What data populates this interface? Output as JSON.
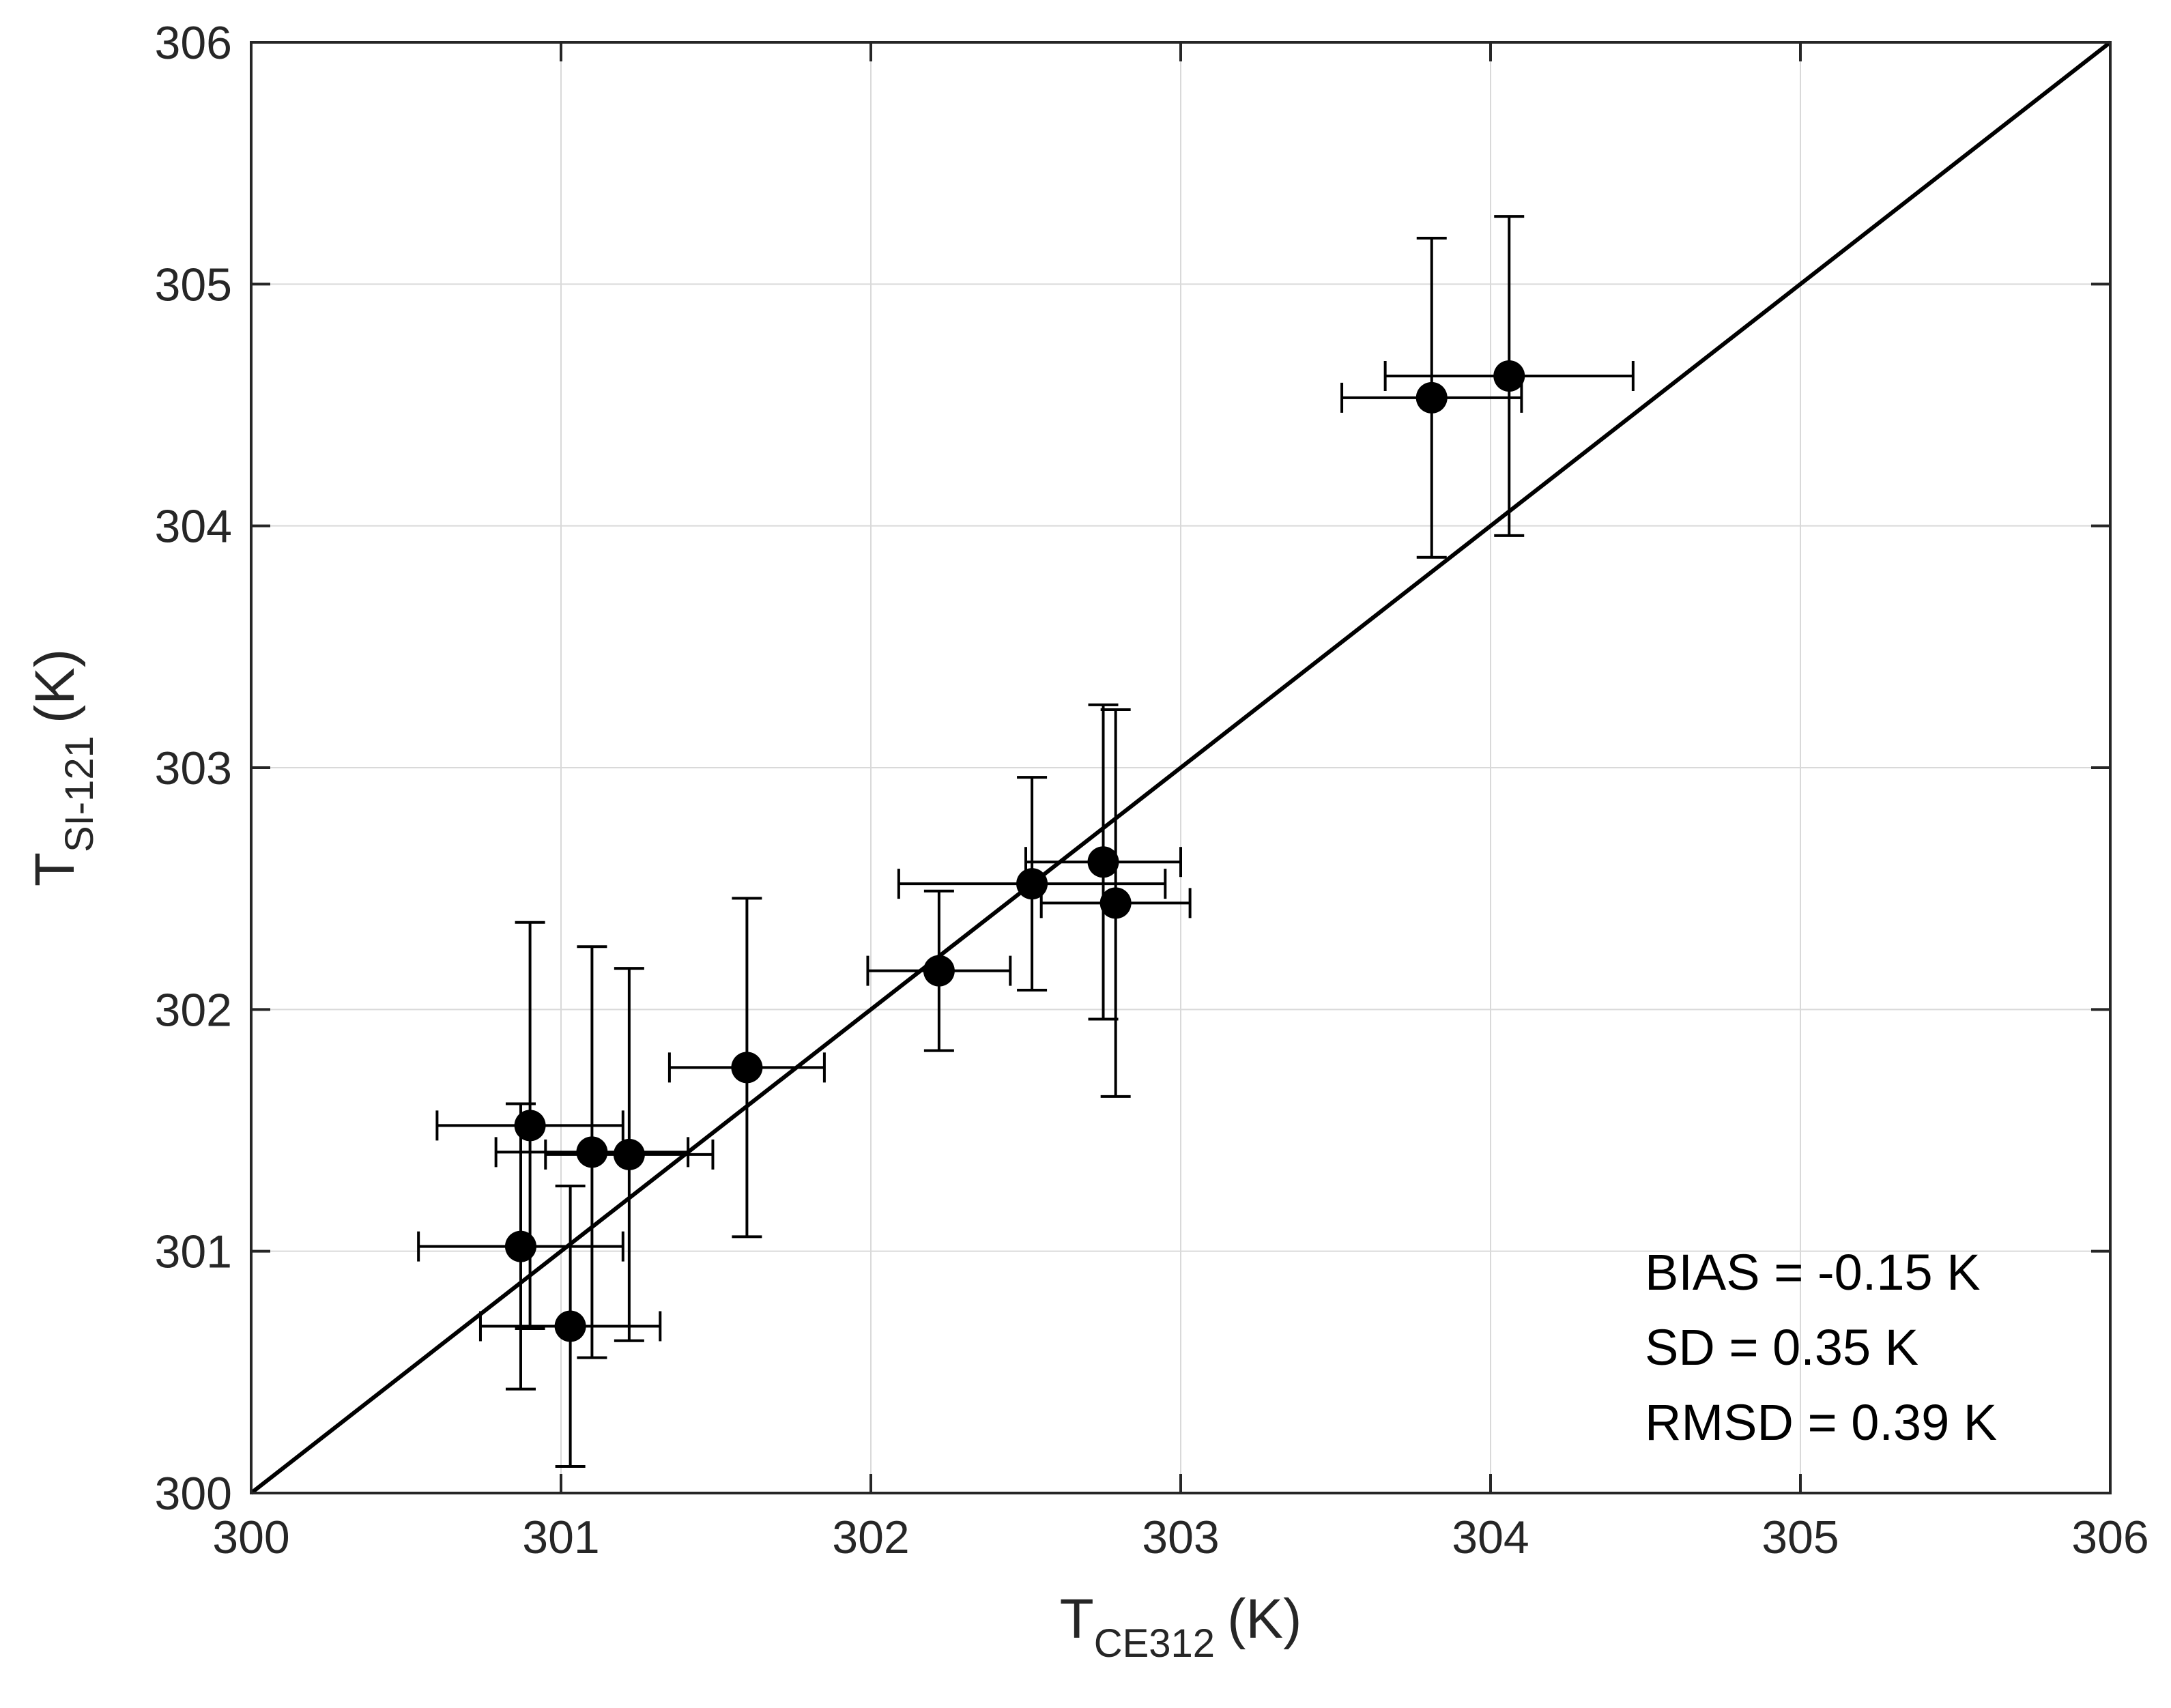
{
  "chart_data": {
    "type": "scatter",
    "title": "",
    "xlabel": {
      "main": "T",
      "sub": "CE312",
      "unit": "(K)"
    },
    "ylabel": {
      "main": "T",
      "sub": "SI-121",
      "unit": "(K)"
    },
    "xlim": [
      300,
      306
    ],
    "ylim": [
      300,
      306
    ],
    "xticks": [
      300,
      301,
      302,
      303,
      304,
      305,
      306
    ],
    "yticks": [
      300,
      301,
      302,
      303,
      304,
      305,
      306
    ],
    "grid": true,
    "reference_line": {
      "name": "1:1 line",
      "from": [
        300,
        300
      ],
      "to": [
        306,
        306
      ]
    },
    "series": [
      {
        "name": "measurements",
        "points": [
          {
            "x": 300.87,
            "y": 301.02,
            "xerr": 0.33,
            "yerr": 0.59
          },
          {
            "x": 300.9,
            "y": 301.52,
            "xerr": 0.3,
            "yerr": 0.84
          },
          {
            "x": 301.03,
            "y": 300.69,
            "xerr": 0.29,
            "yerr": 0.58
          },
          {
            "x": 301.1,
            "y": 301.41,
            "xerr": 0.31,
            "yerr": 0.85
          },
          {
            "x": 301.22,
            "y": 301.4,
            "xerr": 0.27,
            "yerr": 0.77
          },
          {
            "x": 301.6,
            "y": 301.76,
            "xerr": 0.25,
            "yerr": 0.7
          },
          {
            "x": 302.22,
            "y": 302.16,
            "xerr": 0.23,
            "yerr": 0.33
          },
          {
            "x": 302.52,
            "y": 302.52,
            "xerr": 0.43,
            "yerr": 0.44
          },
          {
            "x": 302.75,
            "y": 302.61,
            "xerr": 0.25,
            "yerr": 0.65
          },
          {
            "x": 302.79,
            "y": 302.44,
            "xerr": 0.24,
            "yerr": 0.8
          },
          {
            "x": 303.81,
            "y": 304.53,
            "xerr": 0.29,
            "yerr": 0.66
          },
          {
            "x": 304.06,
            "y": 304.62,
            "xerr": 0.4,
            "yerr": 0.66
          }
        ]
      }
    ],
    "annotations": [
      "BIAS = -0.15 K",
      "SD = 0.35 K",
      "RMSD = 0.39 K"
    ]
  },
  "colors": {
    "background": "#ffffff",
    "marker": "#000000",
    "line": "#000000",
    "grid": "#d9d9d9",
    "axis": "#262626"
  }
}
